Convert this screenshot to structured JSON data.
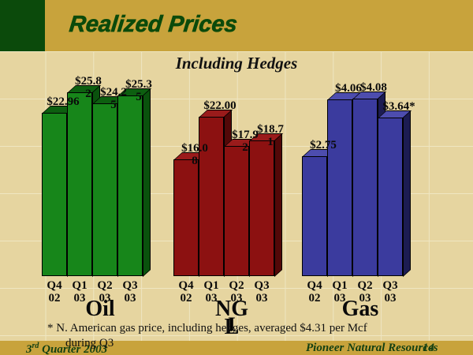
{
  "colors": {
    "background": "#e6d5a0",
    "band_gold": "#c8a33c",
    "dark_green": "#0b4a0b",
    "grid_line": "#efe6c2",
    "footer_text": "#123f12"
  },
  "header": {
    "title": "Realized Prices"
  },
  "chart_data": {
    "type": "bar",
    "title": "Including Hedges",
    "categories": [
      "Q4 02",
      "Q1 03",
      "Q2 03",
      "Q3 03"
    ],
    "categories_display": [
      "Q4\n02",
      "Q1\n03",
      "Q2\n03",
      "Q3\n03"
    ],
    "legend": "none",
    "grid": "faint background grid",
    "groups": [
      {
        "name": "Oil",
        "label_display": "Oil",
        "values": [
          22.96,
          25.82,
          24.25,
          25.35
        ],
        "value_labels_display": [
          "$22.96",
          "$25.8\n2",
          "$24.2\n5",
          "$25.3\n5"
        ],
        "colors": {
          "front": "#17861a",
          "top": "#0d5f10",
          "side": "#0a520d"
        }
      },
      {
        "name": "NGL",
        "label_display": "NG\nL",
        "values": [
          16.08,
          22.0,
          17.92,
          18.71
        ],
        "value_labels_display": [
          "$16.0\n8",
          "$22.00",
          "$17.9\n2",
          "$18.7\n1"
        ],
        "colors": {
          "front": "#8c1111",
          "top": "#9a1b1b",
          "side": "#520808"
        }
      },
      {
        "name": "Gas",
        "label_display": "Gas",
        "values": [
          2.75,
          4.06,
          4.08,
          3.64
        ],
        "value_labels_display": [
          "$2.75",
          "$4.06",
          "$4.08",
          "$3.64*"
        ],
        "colors": {
          "front": "#3b3b9e",
          "top": "#4d4dae",
          "side": "#1c1c52"
        }
      }
    ]
  },
  "footnote": {
    "text": "* N. American gas price, including hedges, averaged $4.31 per Mcf during Q3",
    "display": "* N. American gas price, including hedges, averaged $4.31 per Mcf\nduring Q3"
  },
  "footer": {
    "date_num": "3",
    "date_sup": "rd",
    "date_rest": " Quarter 2003",
    "company": "Pioneer Natural Resources",
    "page": "14"
  },
  "icons": {
    "text_cursor": "I"
  }
}
